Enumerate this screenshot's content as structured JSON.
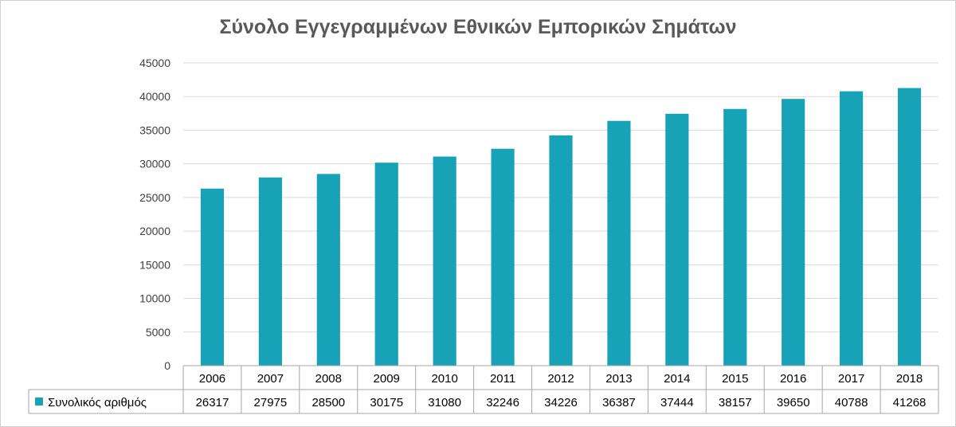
{
  "chart_data": {
    "type": "bar",
    "title": "Σύνολο Εγγεγραμμένων Εθνικών Εμπορικών Σημάτων",
    "categories": [
      "2006",
      "2007",
      "2008",
      "2009",
      "2010",
      "2011",
      "2012",
      "2013",
      "2014",
      "2015",
      "2016",
      "2017",
      "2018"
    ],
    "series": [
      {
        "name": "Συνολικός αριθμός",
        "color": "#17a2b8",
        "values": [
          26317,
          27975,
          28500,
          30175,
          31080,
          32246,
          34226,
          36387,
          37444,
          38157,
          39650,
          40788,
          41268
        ]
      }
    ],
    "ylim": [
      0,
      45000
    ],
    "yticks": [
      0,
      5000,
      10000,
      15000,
      20000,
      25000,
      30000,
      35000,
      40000,
      45000
    ],
    "grid": true,
    "legend": "data-table-left",
    "xlabel": "",
    "ylabel": ""
  }
}
